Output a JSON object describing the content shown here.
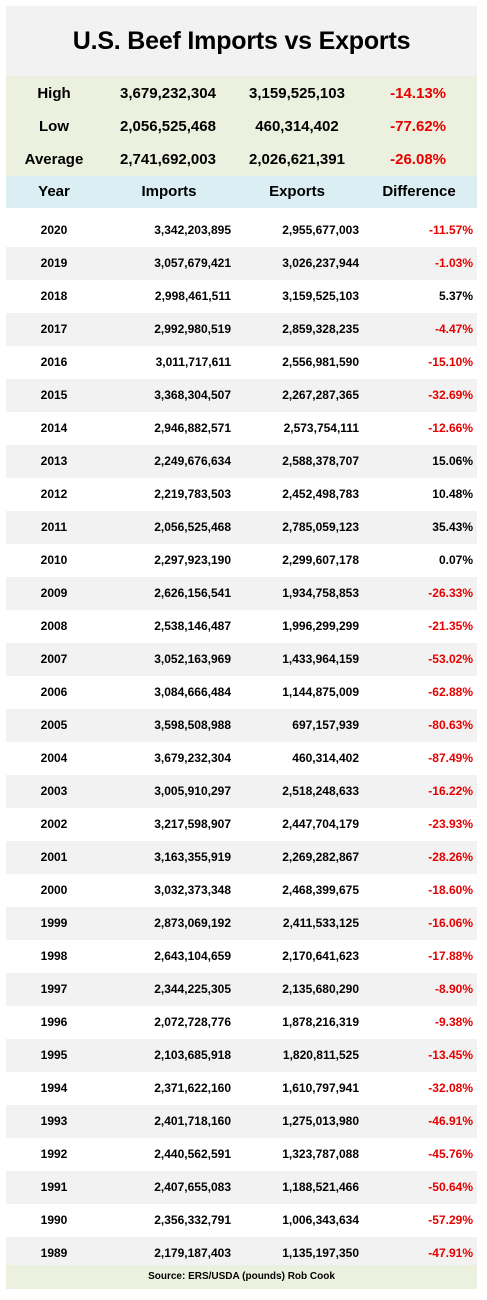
{
  "title": "U.S. Beef Imports vs Exports",
  "summary": [
    {
      "label": "High",
      "imports": "3,679,232,304",
      "exports": "3,159,525,103",
      "difference": "-14.13%"
    },
    {
      "label": "Low",
      "imports": "2,056,525,468",
      "exports": "460,314,402",
      "difference": "-77.62%"
    },
    {
      "label": "Average",
      "imports": "2,741,692,003",
      "exports": "2,026,621,391",
      "difference": "-26.08%"
    }
  ],
  "headers": {
    "year": "Year",
    "imports": "Imports",
    "exports": "Exports",
    "difference": "Difference"
  },
  "colors": {
    "negative": "#e60000",
    "summary_bg": "#ebf1de",
    "header_bg": "#daeef3",
    "stripe": "#f2f2f2"
  },
  "chart_data": {
    "type": "table",
    "title": "U.S. Beef Imports vs Exports",
    "columns": [
      "Year",
      "Imports",
      "Exports",
      "Difference"
    ],
    "rows": [
      {
        "year": "2020",
        "imports": "3,342,203,895",
        "exports": "2,955,677,003",
        "difference": "-11.57%"
      },
      {
        "year": "2019",
        "imports": "3,057,679,421",
        "exports": "3,026,237,944",
        "difference": "-1.03%"
      },
      {
        "year": "2018",
        "imports": "2,998,461,511",
        "exports": "3,159,525,103",
        "difference": "5.37%"
      },
      {
        "year": "2017",
        "imports": "2,992,980,519",
        "exports": "2,859,328,235",
        "difference": "-4.47%"
      },
      {
        "year": "2016",
        "imports": "3,011,717,611",
        "exports": "2,556,981,590",
        "difference": "-15.10%"
      },
      {
        "year": "2015",
        "imports": "3,368,304,507",
        "exports": "2,267,287,365",
        "difference": "-32.69%"
      },
      {
        "year": "2014",
        "imports": "2,946,882,571",
        "exports": "2,573,754,111",
        "difference": "-12.66%"
      },
      {
        "year": "2013",
        "imports": "2,249,676,634",
        "exports": "2,588,378,707",
        "difference": "15.06%"
      },
      {
        "year": "2012",
        "imports": "2,219,783,503",
        "exports": "2,452,498,783",
        "difference": "10.48%"
      },
      {
        "year": "2011",
        "imports": "2,056,525,468",
        "exports": "2,785,059,123",
        "difference": "35.43%"
      },
      {
        "year": "2010",
        "imports": "2,297,923,190",
        "exports": "2,299,607,178",
        "difference": "0.07%"
      },
      {
        "year": "2009",
        "imports": "2,626,156,541",
        "exports": "1,934,758,853",
        "difference": "-26.33%"
      },
      {
        "year": "2008",
        "imports": "2,538,146,487",
        "exports": "1,996,299,299",
        "difference": "-21.35%"
      },
      {
        "year": "2007",
        "imports": "3,052,163,969",
        "exports": "1,433,964,159",
        "difference": "-53.02%"
      },
      {
        "year": "2006",
        "imports": "3,084,666,484",
        "exports": "1,144,875,009",
        "difference": "-62.88%"
      },
      {
        "year": "2005",
        "imports": "3,598,508,988",
        "exports": "697,157,939",
        "difference": "-80.63%"
      },
      {
        "year": "2004",
        "imports": "3,679,232,304",
        "exports": "460,314,402",
        "difference": "-87.49%"
      },
      {
        "year": "2003",
        "imports": "3,005,910,297",
        "exports": "2,518,248,633",
        "difference": "-16.22%"
      },
      {
        "year": "2002",
        "imports": "3,217,598,907",
        "exports": "2,447,704,179",
        "difference": "-23.93%"
      },
      {
        "year": "2001",
        "imports": "3,163,355,919",
        "exports": "2,269,282,867",
        "difference": "-28.26%"
      },
      {
        "year": "2000",
        "imports": "3,032,373,348",
        "exports": "2,468,399,675",
        "difference": "-18.60%"
      },
      {
        "year": "1999",
        "imports": "2,873,069,192",
        "exports": "2,411,533,125",
        "difference": "-16.06%"
      },
      {
        "year": "1998",
        "imports": "2,643,104,659",
        "exports": "2,170,641,623",
        "difference": "-17.88%"
      },
      {
        "year": "1997",
        "imports": "2,344,225,305",
        "exports": "2,135,680,290",
        "difference": "-8.90%"
      },
      {
        "year": "1996",
        "imports": "2,072,728,776",
        "exports": "1,878,216,319",
        "difference": "-9.38%"
      },
      {
        "year": "1995",
        "imports": "2,103,685,918",
        "exports": "1,820,811,525",
        "difference": "-13.45%"
      },
      {
        "year": "1994",
        "imports": "2,371,622,160",
        "exports": "1,610,797,941",
        "difference": "-32.08%"
      },
      {
        "year": "1993",
        "imports": "2,401,718,160",
        "exports": "1,275,013,980",
        "difference": "-46.91%"
      },
      {
        "year": "1992",
        "imports": "2,440,562,591",
        "exports": "1,323,787,088",
        "difference": "-45.76%"
      },
      {
        "year": "1991",
        "imports": "2,407,655,083",
        "exports": "1,188,521,466",
        "difference": "-50.64%"
      },
      {
        "year": "1990",
        "imports": "2,356,332,791",
        "exports": "1,006,343,634",
        "difference": "-57.29%"
      },
      {
        "year": "1989",
        "imports": "2,179,187,403",
        "exports": "1,135,197,350",
        "difference": "-47.91%"
      }
    ]
  },
  "source": "Source:  ERS/USDA (pounds)  Rob Cook"
}
